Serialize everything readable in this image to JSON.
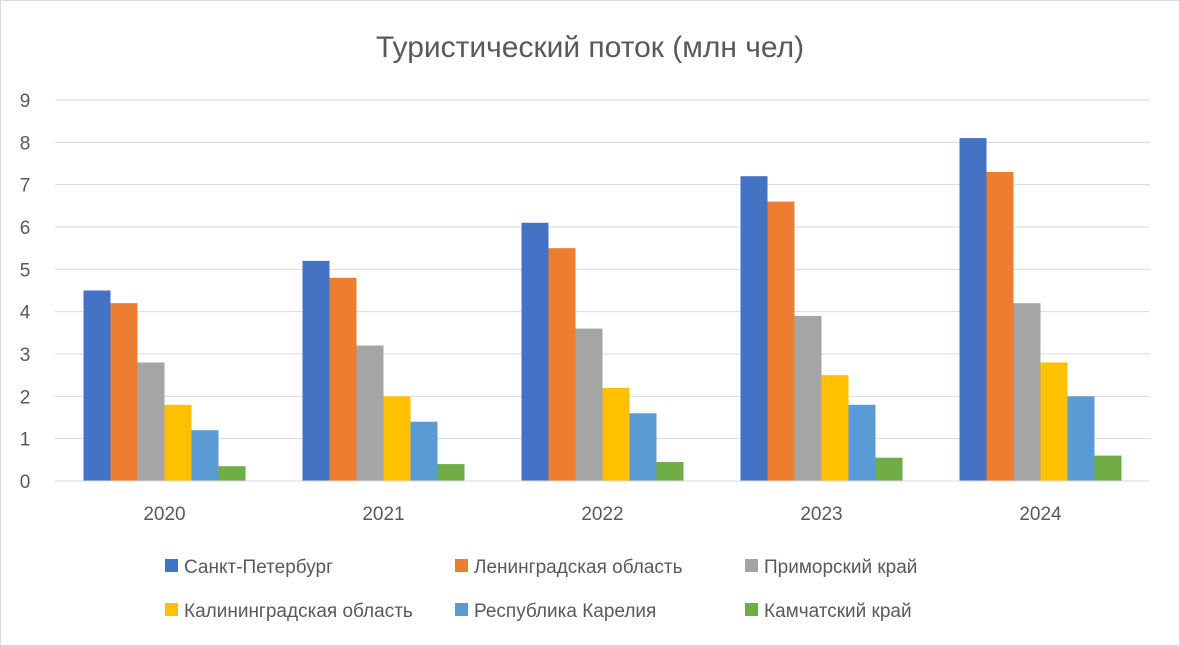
{
  "chart_data": {
    "type": "bar",
    "title": "Туристический поток (млн чел)",
    "xlabel": "",
    "ylabel": "",
    "categories": [
      "2020",
      "2021",
      "2022",
      "2023",
      "2024"
    ],
    "ylim": [
      0,
      9
    ],
    "yticks": [
      "0",
      "1",
      "2",
      "3",
      "4",
      "5",
      "6",
      "7",
      "8",
      "9"
    ],
    "grid": true,
    "legend_position": "bottom",
    "series": [
      {
        "name": "Санкт-Петербург",
        "color": "#4472C4",
        "values": [
          4.5,
          5.2,
          6.1,
          7.2,
          8.1
        ]
      },
      {
        "name": "Ленинградская область",
        "color": "#ED7D31",
        "values": [
          4.2,
          4.8,
          5.5,
          6.6,
          7.3
        ]
      },
      {
        "name": "Приморский край",
        "color": "#A5A5A5",
        "values": [
          2.8,
          3.2,
          3.6,
          3.9,
          4.2
        ]
      },
      {
        "name": "Калининградская область",
        "color": "#FFC000",
        "values": [
          1.8,
          2.0,
          2.2,
          2.5,
          2.8
        ]
      },
      {
        "name": "Республика Карелия",
        "color": "#5B9BD5",
        "values": [
          1.2,
          1.4,
          1.6,
          1.8,
          2.0
        ]
      },
      {
        "name": "Камчатский край",
        "color": "#70AD47",
        "values": [
          0.35,
          0.4,
          0.45,
          0.55,
          0.6
        ]
      }
    ]
  }
}
